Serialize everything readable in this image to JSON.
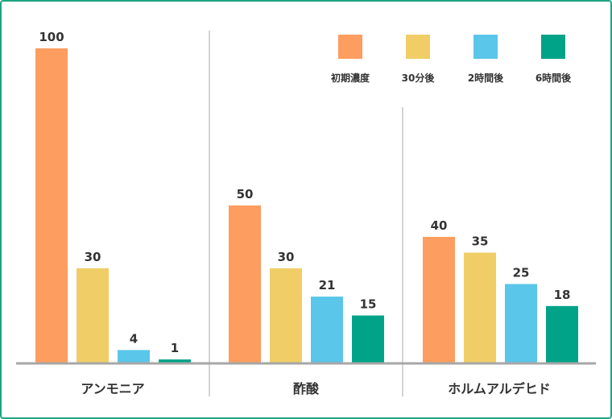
{
  "chart_data": {
    "type": "bar",
    "title": "",
    "xlabel": "",
    "ylabel": "",
    "ylim": [
      0,
      100
    ],
    "grid": false,
    "legend_position": "top-right",
    "categories": [
      "アンモニア",
      "酢酸",
      "ホルムアルデヒド"
    ],
    "series": [
      {
        "name": "初期濃度",
        "color": "#fd9d5f",
        "values": [
          100,
          50,
          40
        ]
      },
      {
        "name": "30分後",
        "color": "#f0cd67",
        "values": [
          30,
          30,
          35
        ]
      },
      {
        "name": "2時間後",
        "color": "#5ac6e9",
        "values": [
          4,
          21,
          25
        ]
      },
      {
        "name": "6時間後",
        "color": "#00a387",
        "values": [
          1,
          15,
          18
        ]
      }
    ],
    "colors": {
      "frame": "#1ea683",
      "axis": "#a7a7a7",
      "divider": "#aaaaaa",
      "text": "#333333"
    }
  }
}
